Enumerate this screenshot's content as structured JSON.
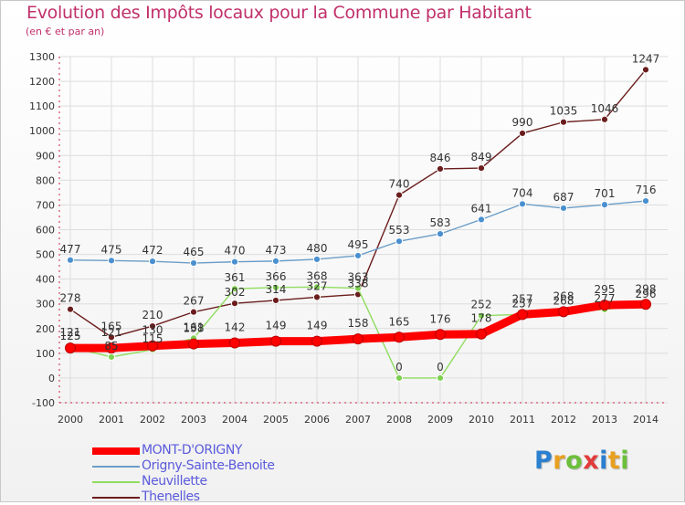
{
  "chart_data": {
    "type": "line",
    "title": "Evolution des Impôts locaux pour la Commune par Habitant",
    "subtitle": "(en € et par an)",
    "x": [
      "2000",
      "2001",
      "2002",
      "2003",
      "2004",
      "2005",
      "2006",
      "2007",
      "2008",
      "2009",
      "2010",
      "2011",
      "2012",
      "2013",
      "2014"
    ],
    "ylim": [
      -100,
      1300
    ],
    "yticks": [
      -100,
      0,
      100,
      200,
      300,
      400,
      500,
      600,
      700,
      800,
      900,
      1000,
      1100,
      1200,
      1300
    ],
    "series": [
      {
        "name": "Thenelles",
        "color": "#6b1d1d",
        "marker_fill": "#6b1d1d",
        "width": "thin",
        "values": [
          278,
          165,
          210,
          267,
          302,
          314,
          327,
          338,
          740,
          846,
          849,
          990,
          1035,
          1046,
          1247
        ]
      },
      {
        "name": "Origny-Sainte-Benoite",
        "color": "#6b9ec8",
        "marker_fill": "#4a90d0",
        "width": "thin",
        "values": [
          477,
          475,
          472,
          465,
          470,
          473,
          480,
          495,
          553,
          583,
          641,
          704,
          687,
          701,
          716
        ]
      },
      {
        "name": "Neuvillette",
        "color": "#90dc60",
        "marker_fill": "#7ed050",
        "width": "thin",
        "values": [
          125,
          85,
          115,
          161,
          361,
          366,
          368,
          363,
          0,
          0,
          252,
          257,
          268,
          277,
          296
        ]
      },
      {
        "name": "MONT-D'ORIGNY",
        "color": "#ff0000",
        "marker_fill": "#ff0000",
        "width": "thick",
        "values": [
          121,
          121,
          130,
          138,
          142,
          149,
          149,
          158,
          165,
          176,
          178,
          257,
          268,
          295,
          298
        ]
      }
    ],
    "legend_order": [
      "MONT-D'ORIGNY",
      "Origny-Sainte-Benoite",
      "Neuvillette",
      "Thenelles"
    ],
    "grid": true,
    "legend": "bottom-left"
  },
  "brand": {
    "text": "Proxiti",
    "letters": [
      "P",
      "r",
      "o",
      "x",
      "i",
      "t",
      "i"
    ]
  }
}
